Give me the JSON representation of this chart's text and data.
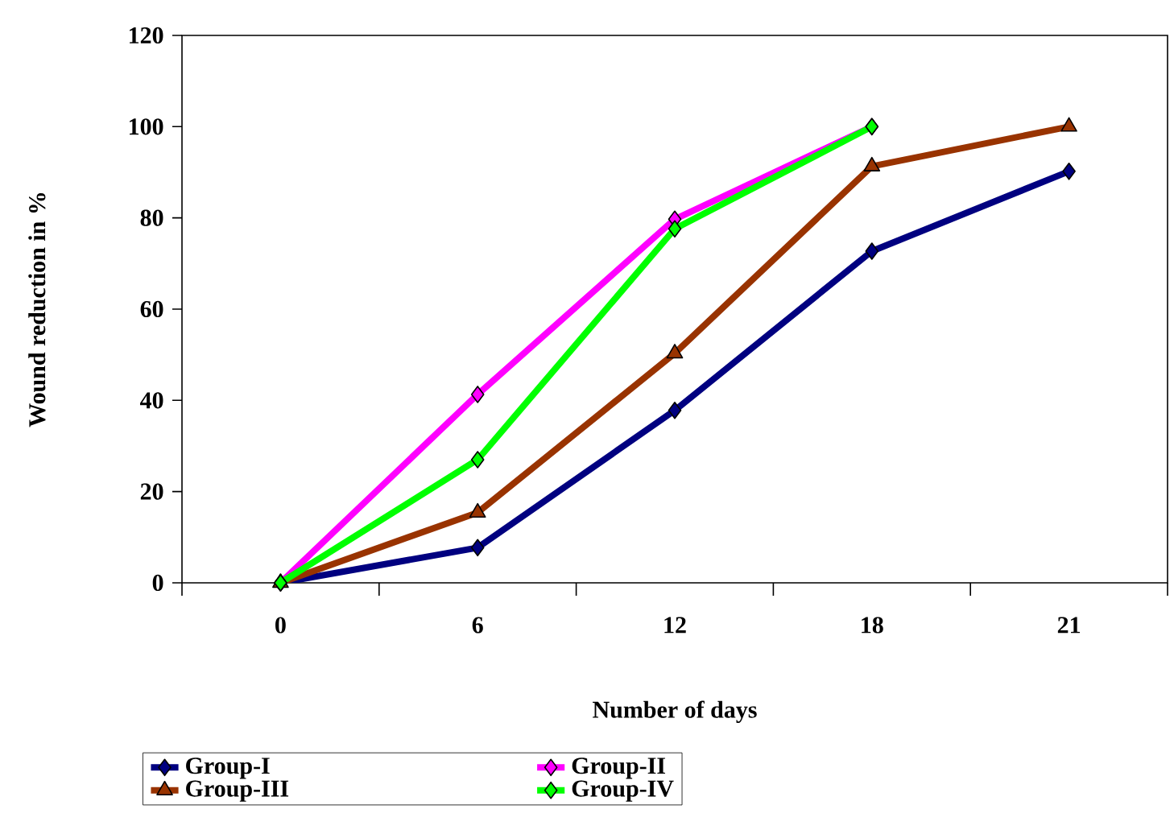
{
  "chart_data": {
    "type": "line",
    "xlabel": "Number of days",
    "ylabel": "Wound reduction in %",
    "categories": [
      "0",
      "6",
      "12",
      "18",
      "21"
    ],
    "series": [
      {
        "name": "Group-I",
        "color": "#000080",
        "marker": "diamond",
        "values": [
          0,
          7.7,
          37.8,
          72.7,
          90.2
        ]
      },
      {
        "name": "Group-II",
        "color": "#ff00ff",
        "marker": "diamond",
        "values": [
          0,
          41.3,
          79.7,
          100,
          null
        ]
      },
      {
        "name": "Group-III",
        "color": "#993300",
        "marker": "triangle",
        "values": [
          0,
          15.4,
          50.3,
          91.3,
          100
        ]
      },
      {
        "name": "Group-IV",
        "color": "#00ff00",
        "marker": "diamond",
        "values": [
          0,
          27,
          77.6,
          100,
          null
        ]
      }
    ],
    "ylim": [
      0,
      120
    ],
    "yticks": [
      0,
      20,
      40,
      60,
      80,
      100,
      120
    ],
    "grid": false,
    "legend": "bottom",
    "line_style": "solid"
  }
}
